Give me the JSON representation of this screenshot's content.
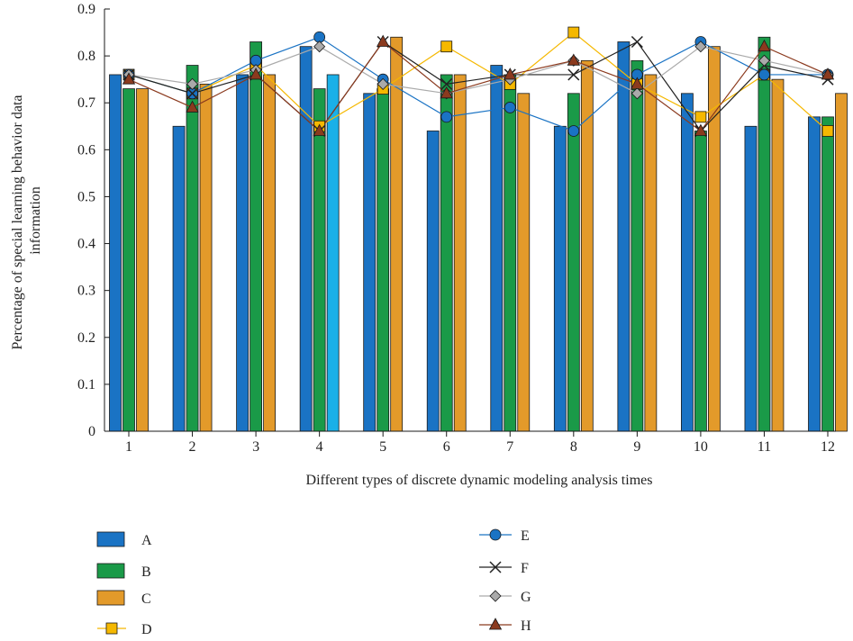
{
  "chart_data": {
    "type": "bar",
    "title": "",
    "xlabel": "Different types of discrete dynamic modeling analysis times",
    "ylabel_lines": [
      "Percentage of special learning behavior data",
      "information"
    ],
    "categories": [
      "1",
      "2",
      "3",
      "4",
      "5",
      "6",
      "7",
      "8",
      "9",
      "10",
      "11",
      "12"
    ],
    "ylim": [
      0,
      0.9
    ],
    "yticks": [
      "0",
      "0.1",
      "0.2",
      "0.3",
      "0.4",
      "0.5",
      "0.6",
      "0.7",
      "0.8",
      "0.9"
    ],
    "grid": false,
    "legend_position": "bottom",
    "bar_series": [
      {
        "name": "A",
        "color": "#1a73c4",
        "values": [
          0.76,
          0.65,
          0.76,
          0.82,
          0.72,
          0.64,
          0.78,
          0.65,
          0.83,
          0.72,
          0.65,
          0.67
        ]
      },
      {
        "name": "B",
        "color": "#1a9a48",
        "values": [
          0.73,
          0.78,
          0.83,
          0.73,
          0.73,
          0.76,
          0.76,
          0.72,
          0.79,
          0.64,
          0.84,
          0.67
        ]
      },
      {
        "name": "C",
        "color": "#e39a2a",
        "values": [
          0.73,
          0.74,
          0.76,
          0.76,
          0.84,
          0.76,
          0.72,
          0.79,
          0.76,
          0.82,
          0.75,
          0.72
        ]
      }
    ],
    "bar_color_overrides": [
      {
        "series": "C",
        "category": "4",
        "color": "#1ab0e8"
      }
    ],
    "line_series": [
      {
        "name": "D",
        "color": "#f5b800",
        "marker": "square",
        "values": [
          0.76,
          0.72,
          0.78,
          0.65,
          0.73,
          0.82,
          0.74,
          0.85,
          0.74,
          0.67,
          0.76,
          0.64
        ]
      },
      {
        "name": "E",
        "color": "#1a73c4",
        "marker": "circle",
        "values": [
          0.76,
          0.72,
          0.79,
          0.84,
          0.75,
          0.67,
          0.69,
          0.64,
          0.76,
          0.83,
          0.76,
          0.76
        ]
      },
      {
        "name": "F",
        "color": "#222222",
        "marker": "x",
        "values": [
          0.76,
          0.72,
          0.76,
          0.64,
          0.83,
          0.74,
          0.76,
          0.76,
          0.83,
          0.64,
          0.78,
          0.75
        ]
      },
      {
        "name": "G",
        "color": "#aaaaaa",
        "marker": "diamond",
        "values": [
          0.76,
          0.74,
          0.77,
          0.82,
          0.74,
          0.72,
          0.75,
          0.79,
          0.72,
          0.82,
          0.79,
          0.76
        ]
      },
      {
        "name": "H",
        "color": "#8b3a1e",
        "marker": "triangle",
        "values": [
          0.75,
          0.69,
          0.76,
          0.64,
          0.83,
          0.72,
          0.76,
          0.79,
          0.74,
          0.64,
          0.82,
          0.76
        ]
      }
    ],
    "legend": [
      "A",
      "B",
      "C",
      "D",
      "E",
      "F",
      "G",
      "H"
    ]
  }
}
